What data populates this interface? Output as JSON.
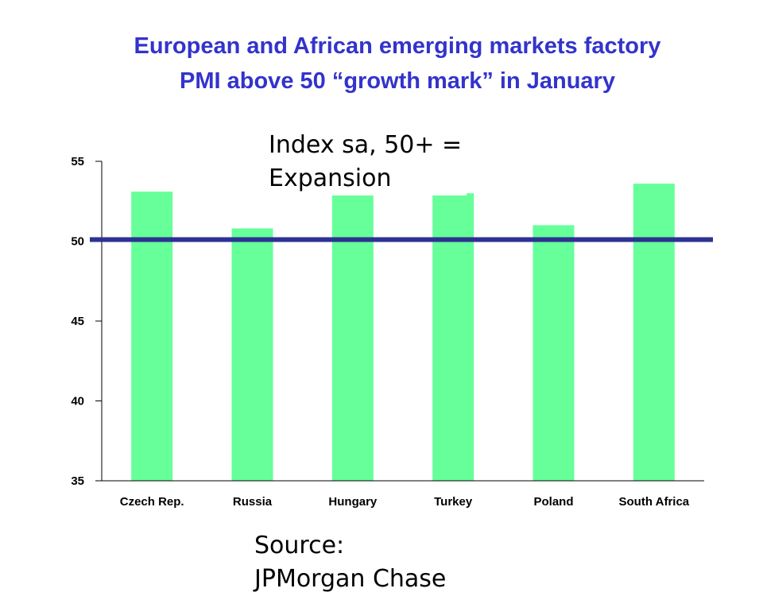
{
  "title": {
    "line1": "European and African emerging markets factory",
    "line2": "PMI above 50 “growth mark” in January"
  },
  "annotation": {
    "line1": "Index sa, 50+ =",
    "line2": "Expansion"
  },
  "source": {
    "line1": "Source:",
    "line2": "JPMorgan Chase"
  },
  "colors": {
    "title": "#3333cc",
    "bar": "#66ff99",
    "reference_line": "#2e3192",
    "axis": "#000000"
  },
  "chart_data": {
    "type": "bar",
    "categories": [
      "Czech Rep.",
      "Russia",
      "Hungary",
      "Turkey",
      "Poland",
      "South Africa"
    ],
    "values": [
      53.1,
      50.8,
      53.5,
      53.0,
      51.0,
      53.6
    ],
    "ylim": [
      35,
      55
    ],
    "yticks": [
      35,
      40,
      45,
      50,
      55
    ],
    "reference_line": 50,
    "grid": false,
    "legend": "none"
  }
}
